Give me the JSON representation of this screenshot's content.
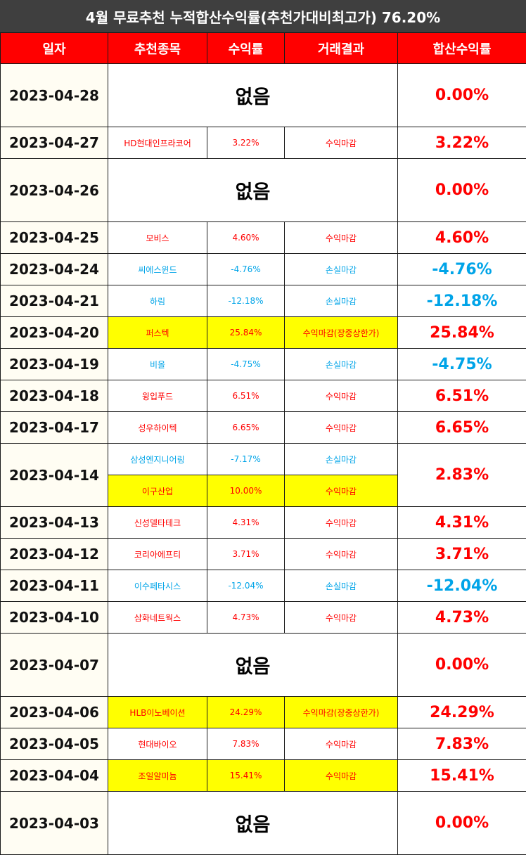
{
  "title": "4월 무료추천 누적합산수익률(추천가대비최고가) 76.20%",
  "headers": [
    "일자",
    "추천종목",
    "수익률",
    "거래결과",
    "합산수익률"
  ],
  "colors": {
    "profit": "#ff0000",
    "loss": "#00a4e8",
    "highlight": "#ffff00",
    "header_bg": "#ff0000",
    "title_bg": "#3f3f3f"
  },
  "rows": [
    {
      "date": "2023-04-28",
      "none": "없음",
      "total": "0.00%"
    },
    {
      "date": "2023-04-27",
      "stock": "HD현대인프라코어",
      "rate": "3.22%",
      "result": "수익마감",
      "total": "3.22%"
    },
    {
      "date": "2023-04-26",
      "none": "없음",
      "total": "0.00%"
    },
    {
      "date": "2023-04-25",
      "stock": "모비스",
      "rate": "4.60%",
      "result": "수익마감",
      "total": "4.60%"
    },
    {
      "date": "2023-04-24",
      "stock": "씨에스윈드",
      "rate": "-4.76%",
      "result": "손실마감",
      "total": "-4.76%"
    },
    {
      "date": "2023-04-21",
      "stock": "하림",
      "rate": "-12.18%",
      "result": "손실마감",
      "total": "-12.18%"
    },
    {
      "date": "2023-04-20",
      "stock": "퍼스텍",
      "rate": "25.84%",
      "result": "수익마감(장중상한가)",
      "total": "25.84%"
    },
    {
      "date": "2023-04-19",
      "stock": "비올",
      "rate": "-4.75%",
      "result": "손실마감",
      "total": "-4.75%"
    },
    {
      "date": "2023-04-18",
      "stock": "윙입푸드",
      "rate": "6.51%",
      "result": "수익마감",
      "total": "6.51%"
    },
    {
      "date": "2023-04-17",
      "stock": "성우하이텍",
      "rate": "6.65%",
      "result": "수익마감",
      "total": "6.65%"
    },
    {
      "date": "2023-04-14",
      "stock": "삼성엔지니어링",
      "rate": "-7.17%",
      "result": "손실마감",
      "stock2": "이구산업",
      "rate2": "10.00%",
      "result2": "수익마감",
      "total": "2.83%"
    },
    {
      "date": "2023-04-13",
      "stock": "신성델타테크",
      "rate": "4.31%",
      "result": "수익마감",
      "total": "4.31%"
    },
    {
      "date": "2023-04-12",
      "stock": "코리아에프티",
      "rate": "3.71%",
      "result": "수익마감",
      "total": "3.71%"
    },
    {
      "date": "2023-04-11",
      "stock": "이수페타시스",
      "rate": "-12.04%",
      "result": "손실마감",
      "total": "-12.04%"
    },
    {
      "date": "2023-04-10",
      "stock": "삼화네트웍스",
      "rate": "4.73%",
      "result": "수익마감",
      "total": "4.73%"
    },
    {
      "date": "2023-04-07",
      "none": "없음",
      "total": "0.00%"
    },
    {
      "date": "2023-04-06",
      "stock": "HLB이노베이션",
      "rate": "24.29%",
      "result": "수익마감(장중상한가)",
      "total": "24.29%"
    },
    {
      "date": "2023-04-05",
      "stock": "현대바이오",
      "rate": "7.83%",
      "result": "수익마감",
      "total": "7.83%"
    },
    {
      "date": "2023-04-04",
      "stock": "조일알미늄",
      "rate": "15.41%",
      "result": "수익마감",
      "total": "15.41%"
    },
    {
      "date": "2023-04-03",
      "none": "없음",
      "total": "0.00%"
    }
  ]
}
